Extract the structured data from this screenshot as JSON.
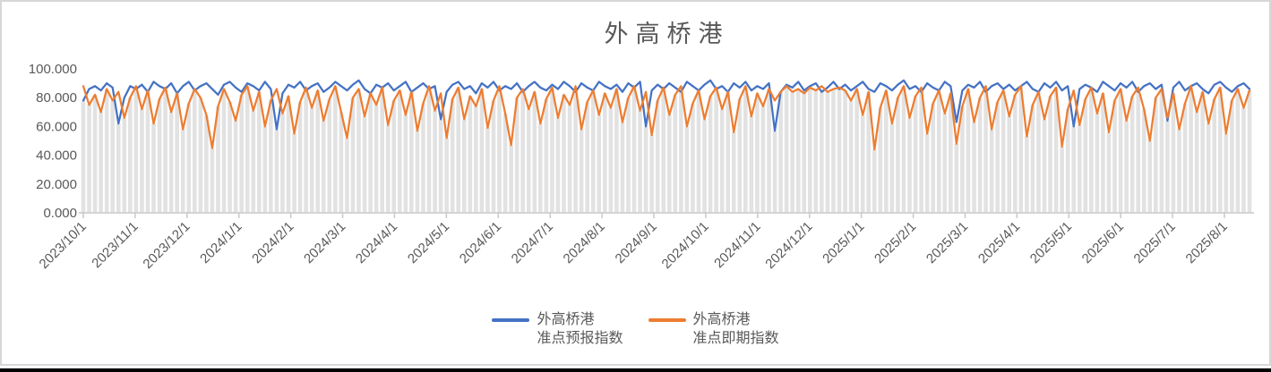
{
  "page": {
    "background": "#FFFFFF",
    "frame_border_color": "#D7D7D7",
    "bottom_strip_color": "#000000"
  },
  "chart_data": {
    "type": "line",
    "title": "外高桥港",
    "title_color": "#595959",
    "text_color": "#595959",
    "axis_color": "#C9C9C9",
    "gridlines": false,
    "legend_position": "bottom",
    "ylim": [
      0,
      100
    ],
    "y_ticks": [
      "0.000",
      "20.000",
      "40.000",
      "60.000",
      "80.000",
      "100.000"
    ],
    "x_label_rotation_deg": -45,
    "x_ticks": [
      "2023/10/1",
      "2023/11/1",
      "2023/12/1",
      "2024/1/1",
      "2024/2/1",
      "2024/3/1",
      "2024/4/1",
      "2024/5/1",
      "2024/6/1",
      "2024/7/1",
      "2024/8/1",
      "2024/9/1",
      "2024/10/1",
      "2024/11/1",
      "2024/12/1",
      "2025/1/1",
      "2025/2/1",
      "2025/3/1",
      "2025/4/1",
      "2025/5/1",
      "2025/6/1",
      "2025/7/1",
      "2025/8/1"
    ],
    "background_bars": {
      "color": "#E2E2E2",
      "note": "dense light-gray daily columns behind the lines; column tops track the lower of the two line series"
    },
    "series": [
      {
        "name": "外高桥港准点预报指数",
        "legend_line1": "外高桥港",
        "legend_line2": "准点预报指数",
        "color": "#4472C4",
        "values": [
          78,
          86,
          88,
          85,
          90,
          87,
          62,
          80,
          88,
          86,
          89,
          84,
          91,
          88,
          86,
          90,
          83,
          88,
          91,
          85,
          88,
          90,
          86,
          82,
          89,
          91,
          87,
          84,
          90,
          88,
          85,
          91,
          86,
          58,
          83,
          89,
          87,
          91,
          85,
          88,
          90,
          84,
          87,
          91,
          88,
          85,
          89,
          92,
          86,
          83,
          89,
          87,
          90,
          85,
          88,
          91,
          84,
          87,
          90,
          86,
          88,
          65,
          84,
          89,
          91,
          86,
          88,
          83,
          90,
          87,
          91,
          85,
          88,
          86,
          90,
          84,
          88,
          91,
          87,
          85,
          89,
          86,
          91,
          88,
          84,
          90,
          87,
          85,
          91,
          88,
          86,
          89,
          84,
          90,
          87,
          91,
          60,
          85,
          89,
          86,
          90,
          87,
          84,
          91,
          88,
          85,
          89,
          92,
          86,
          88,
          84,
          90,
          87,
          91,
          85,
          88,
          86,
          90,
          57,
          84,
          89,
          87,
          91,
          85,
          88,
          90,
          84,
          87,
          91,
          86,
          89,
          85,
          88,
          91,
          86,
          84,
          90,
          88,
          85,
          89,
          92,
          86,
          88,
          84,
          90,
          87,
          85,
          91,
          88,
          63,
          85,
          89,
          87,
          91,
          84,
          88,
          90,
          86,
          89,
          85,
          88,
          91,
          86,
          84,
          90,
          87,
          91,
          85,
          88,
          60,
          86,
          89,
          87,
          84,
          91,
          88,
          85,
          90,
          87,
          91,
          84,
          88,
          90,
          86,
          89,
          64,
          87,
          91,
          85,
          88,
          90,
          86,
          83,
          89,
          91,
          87,
          84,
          88,
          90,
          86
        ]
      },
      {
        "name": "外高桥港准点即期指数",
        "legend_line1": "外高桥港",
        "legend_line2": "准点即期指数",
        "color": "#ED7D31",
        "values": [
          88,
          75,
          82,
          70,
          86,
          78,
          84,
          66,
          80,
          88,
          72,
          85,
          62,
          79,
          87,
          70,
          83,
          58,
          76,
          86,
          80,
          68,
          45,
          74,
          86,
          77,
          64,
          82,
          88,
          71,
          84,
          60,
          78,
          86,
          69,
          81,
          55,
          77,
          87,
          73,
          85,
          64,
          79,
          88,
          70,
          52,
          80,
          86,
          67,
          83,
          75,
          87,
          61,
          78,
          85,
          68,
          84,
          57,
          76,
          88,
          71,
          83,
          52,
          79,
          87,
          65,
          81,
          74,
          86,
          59,
          78,
          88,
          69,
          47,
          80,
          86,
          72,
          84,
          62,
          79,
          87,
          66,
          82,
          75,
          88,
          58,
          77,
          85,
          68,
          83,
          73,
          86,
          63,
          80,
          88,
          71,
          84,
          54,
          78,
          87,
          68,
          82,
          88,
          60,
          76,
          85,
          65,
          81,
          87,
          72,
          84,
          56,
          79,
          88,
          67,
          83,
          74,
          86,
          78,
          84,
          88,
          84,
          86,
          83,
          87,
          85,
          88,
          84,
          86,
          87,
          85,
          78,
          86,
          68,
          84,
          44,
          73,
          85,
          62,
          80,
          88,
          66,
          81,
          87,
          55,
          76,
          85,
          69,
          83,
          48,
          74,
          86,
          63,
          80,
          88,
          58,
          77,
          85,
          67,
          82,
          88,
          53,
          75,
          84,
          65,
          81,
          87,
          46,
          72,
          85,
          61,
          79,
          87,
          69,
          83,
          56,
          78,
          86,
          64,
          81,
          87,
          72,
          50,
          80,
          86,
          66,
          83,
          58,
          76,
          88,
          70,
          84,
          62,
          79,
          87,
          55,
          78,
          86,
          73,
          85
        ]
      }
    ]
  }
}
